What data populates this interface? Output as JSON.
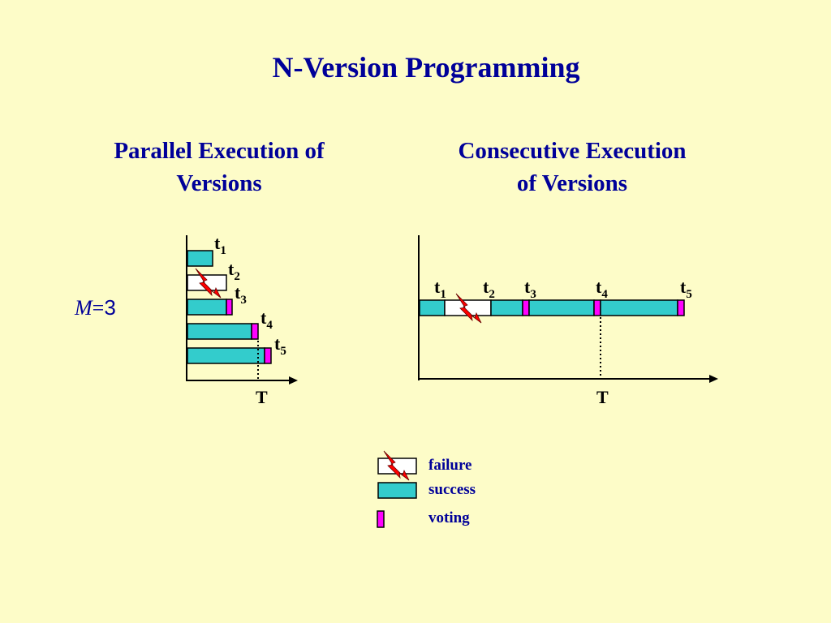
{
  "title": "N-Version Programming",
  "parallel_subtitle": [
    "Parallel Execution of",
    "Versions"
  ],
  "consecutive_subtitle": [
    "Consecutive  Execution",
    "of Versions"
  ],
  "m_label": {
    "var": "M",
    "eq": "=",
    "num": "3"
  },
  "time_labels": {
    "t1": {
      "base": "t",
      "sub": "1"
    },
    "t2": {
      "base": "t",
      "sub": "2"
    },
    "t3": {
      "base": "t",
      "sub": "3"
    },
    "t4": {
      "base": "t",
      "sub": "4"
    },
    "t5": {
      "base": "t",
      "sub": "5"
    }
  },
  "deadline_label": "T",
  "legend": {
    "failure": "failure",
    "success": "success",
    "voting": "voting"
  },
  "colors": {
    "background": "#fdfcc8",
    "title": "#000099",
    "success": "#33cccc",
    "voting": "#ff00ff",
    "failure_fill": "#ffffff",
    "lightning": "#ff0000"
  },
  "icons": [
    "lightning-icon"
  ]
}
